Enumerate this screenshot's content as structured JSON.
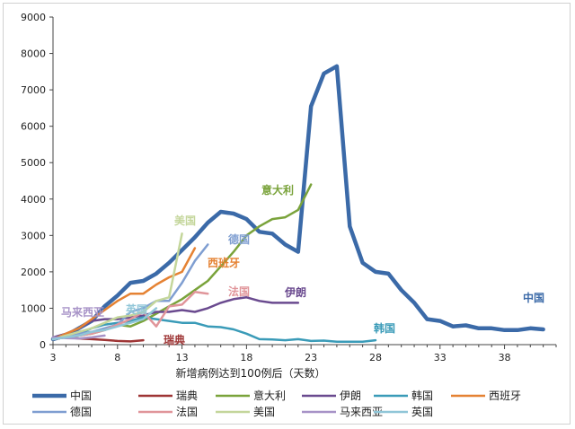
{
  "chart_data": {
    "type": "line",
    "xlabel": "新增病例达到100例后（天数）",
    "ylabel": "",
    "xlim": [
      3,
      42
    ],
    "ylim": [
      0,
      9000
    ],
    "x_ticks": [
      3,
      8,
      13,
      18,
      23,
      28,
      33,
      38
    ],
    "y_ticks": [
      0,
      1000,
      2000,
      3000,
      4000,
      5000,
      6000,
      7000,
      8000,
      9000
    ],
    "grid": false,
    "legend_position": "bottom",
    "series": [
      {
        "name": "中国",
        "color": "#3b6aa8",
        "width": 4.5,
        "label": "中国",
        "x": [
          3,
          4,
          5,
          6,
          7,
          8,
          9,
          10,
          11,
          12,
          13,
          14,
          15,
          16,
          17,
          18,
          19,
          20,
          21,
          22,
          23,
          24,
          25,
          26,
          27,
          28,
          29,
          30,
          31,
          32,
          33,
          34,
          35,
          36,
          37,
          38,
          39,
          40,
          41
        ],
        "y": [
          150,
          250,
          450,
          650,
          1050,
          1350,
          1700,
          1750,
          1950,
          2250,
          2600,
          2950,
          3350,
          3650,
          3600,
          3450,
          3100,
          3050,
          2750,
          2550,
          6550,
          7450,
          7650,
          3250,
          2250,
          2000,
          1950,
          1500,
          1150,
          700,
          650,
          500,
          530,
          450,
          450,
          400,
          400,
          450,
          420
        ]
      },
      {
        "name": "瑞典",
        "color": "#9e3535",
        "width": 2.5,
        "label": "瑞典",
        "x": [
          3,
          4,
          5,
          6,
          7,
          8,
          9,
          10
        ],
        "y": [
          150,
          200,
          170,
          150,
          130,
          100,
          90,
          120
        ]
      },
      {
        "name": "意大利",
        "color": "#7aa33b",
        "width": 2.5,
        "label": "意大利",
        "x": [
          3,
          4,
          5,
          6,
          7,
          8,
          9,
          10,
          11,
          12,
          13,
          14,
          15,
          16,
          17,
          18,
          19,
          20,
          21,
          22,
          23
        ],
        "y": [
          150,
          200,
          250,
          300,
          400,
          550,
          500,
          650,
          850,
          1050,
          1250,
          1500,
          1750,
          2150,
          2550,
          3000,
          3250,
          3450,
          3500,
          3700,
          4400
        ]
      },
      {
        "name": "伊朗",
        "color": "#6a4a8f",
        "width": 2.5,
        "label": "伊朗",
        "x": [
          3,
          4,
          5,
          6,
          7,
          8,
          9,
          10,
          11,
          12,
          13,
          14,
          15,
          16,
          17,
          18,
          19,
          20,
          21,
          22
        ],
        "y": [
          200,
          300,
          450,
          650,
          700,
          700,
          750,
          800,
          900,
          900,
          950,
          900,
          1000,
          1150,
          1250,
          1300,
          1200,
          1150,
          1150,
          1150
        ]
      },
      {
        "name": "韩国",
        "color": "#3a9bb8",
        "width": 2.5,
        "label": "韩国",
        "x": [
          3,
          4,
          5,
          6,
          7,
          8,
          9,
          10,
          11,
          12,
          13,
          14,
          15,
          16,
          17,
          18,
          19,
          20,
          21,
          22,
          23,
          24,
          25,
          26,
          27,
          28
        ],
        "y": [
          150,
          200,
          300,
          450,
          550,
          600,
          650,
          750,
          700,
          650,
          600,
          600,
          500,
          480,
          420,
          300,
          150,
          140,
          120,
          150,
          100,
          110,
          80,
          80,
          80,
          120
        ]
      },
      {
        "name": "西班牙",
        "color": "#e58233",
        "width": 2.5,
        "label": "西班牙",
        "x": [
          3,
          4,
          5,
          6,
          7,
          8,
          9,
          10,
          11,
          12,
          13,
          14
        ],
        "y": [
          150,
          300,
          450,
          700,
          950,
          1200,
          1400,
          1400,
          1650,
          1850,
          2000,
          2650
        ]
      },
      {
        "name": "德国",
        "color": "#7f9ed1",
        "width": 2.5,
        "label": "德国",
        "x": [
          3,
          4,
          5,
          6,
          7,
          8,
          9,
          10,
          11,
          12,
          13,
          14,
          15
        ],
        "y": [
          150,
          250,
          300,
          350,
          450,
          550,
          900,
          1000,
          1200,
          1200,
          1700,
          2300,
          2750
        ]
      },
      {
        "name": "法国",
        "color": "#e0959a",
        "width": 2.5,
        "label": "法国",
        "x": [
          3,
          4,
          5,
          6,
          7,
          8,
          9,
          10,
          11,
          12,
          13,
          14,
          15
        ],
        "y": [
          150,
          200,
          250,
          300,
          400,
          550,
          700,
          900,
          500,
          1050,
          1100,
          1450,
          1400
        ]
      },
      {
        "name": "美国",
        "color": "#c4d69b",
        "width": 2.5,
        "label": "美国",
        "x": [
          3,
          4,
          5,
          6,
          7,
          8,
          9,
          10,
          11,
          12,
          13
        ],
        "y": [
          150,
          250,
          350,
          450,
          600,
          750,
          800,
          900,
          1200,
          1300,
          3050
        ]
      },
      {
        "name": "马来西亚",
        "color": "#a793c7",
        "width": 2.5,
        "label": "马来西亚",
        "x": [
          3,
          4,
          5,
          6,
          7
        ],
        "y": [
          200,
          180,
          170,
          200,
          250
        ]
      },
      {
        "name": "英国",
        "color": "#90c6d8",
        "width": 2.5,
        "label": "英国",
        "x": [
          3,
          4,
          5,
          6,
          7,
          8,
          9,
          10,
          11
        ],
        "y": [
          150,
          200,
          250,
          350,
          400,
          500,
          600,
          700,
          1000
        ]
      }
    ]
  }
}
